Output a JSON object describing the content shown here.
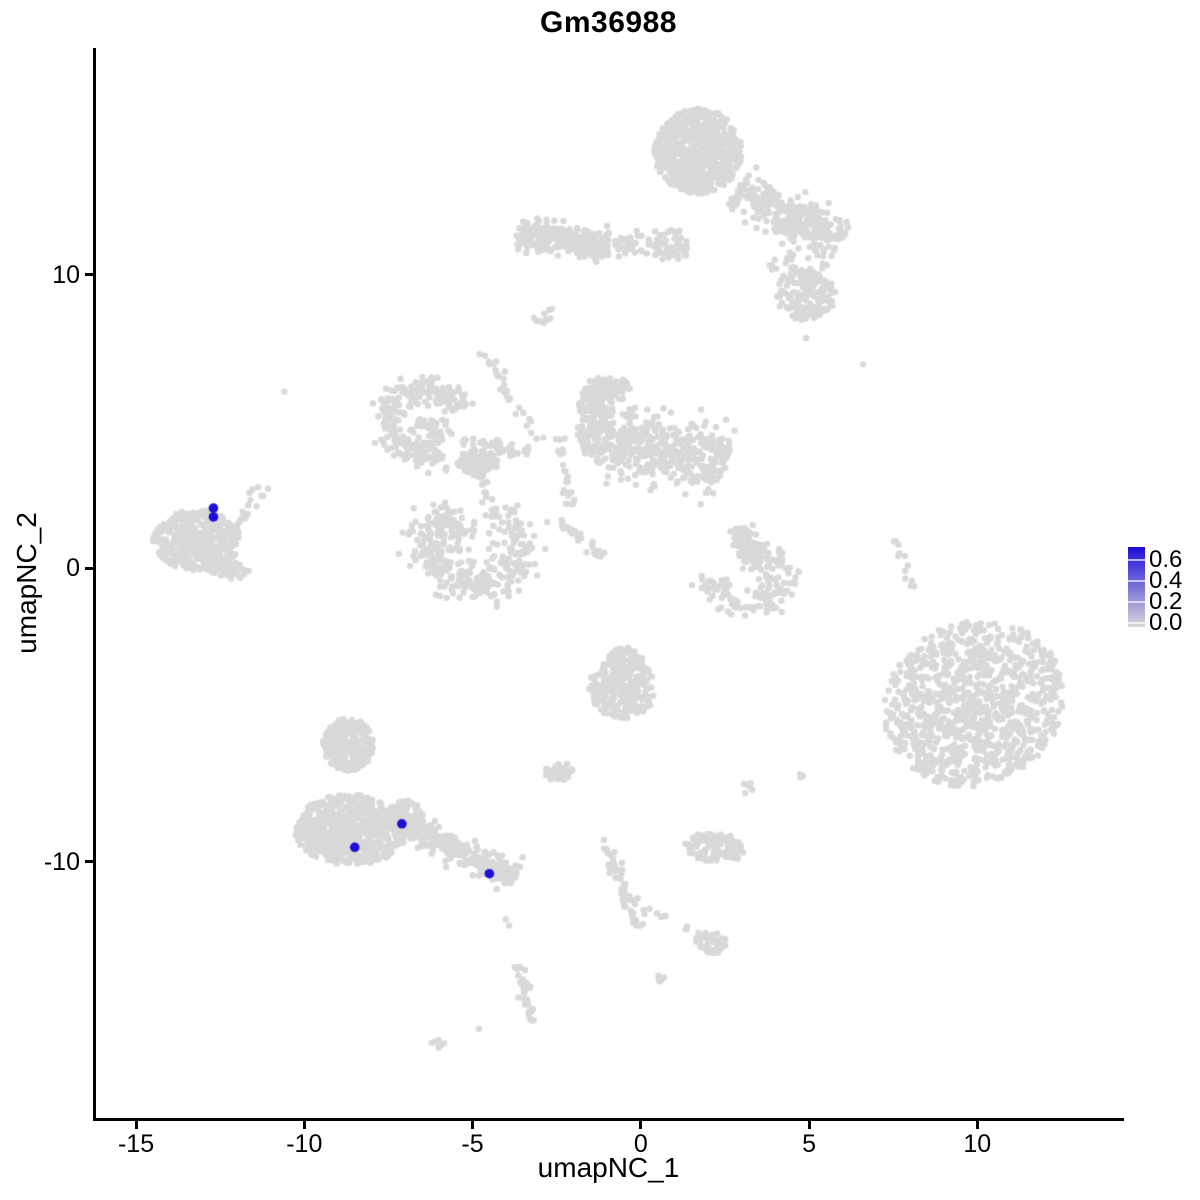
{
  "figure": {
    "title": "Gm36988",
    "background_color": "#FFFFFF"
  },
  "axes": {
    "x": {
      "title": "umapNC_1",
      "tick_labels": [
        "-15",
        "-10",
        "-5",
        "0",
        "5",
        "10"
      ]
    },
    "y": {
      "title": "umapNC_2",
      "tick_labels": [
        "10",
        "0",
        "-10"
      ]
    }
  },
  "legend": {
    "tick_labels": [
      "0.6",
      "0.4",
      "0.2",
      "0.0"
    ],
    "tick_values": [
      0.6,
      0.4,
      0.2,
      0.0
    ],
    "low_color": "#D9D9D9",
    "high_color": "#1E0DD8"
  },
  "chart_data": {
    "type": "scatter",
    "title": "Gm36988",
    "xlabel": "umapNC_1",
    "ylabel": "umapNC_2",
    "xlim": [
      -16.22,
      14.3
    ],
    "ylim": [
      -18.72,
      17.72
    ],
    "x_ticks": [
      -15,
      -10,
      -5,
      0,
      5,
      10
    ],
    "y_ticks": [
      10,
      0,
      -10
    ],
    "grid": false,
    "legend_position": "right",
    "color_scale": {
      "low": "#D9D9D9",
      "high": "#1E0DD8",
      "min": 0.0,
      "max": 0.6
    },
    "point_style": {
      "radius_px": 3.2,
      "highlight_radius_px": 4.8
    },
    "seed": 42,
    "highlighted_points": [
      {
        "x": -12.7,
        "y": 2.05,
        "value": 0.6
      },
      {
        "x": -12.7,
        "y": 1.75,
        "value": 0.6
      },
      {
        "x": -8.5,
        "y": -9.5,
        "value": 0.6
      },
      {
        "x": -7.1,
        "y": -8.7,
        "value": 0.6
      },
      {
        "x": -4.5,
        "y": -10.4,
        "value": 0.6
      }
    ],
    "background_clusters": [
      {
        "name": "top-main",
        "shape": "blob",
        "center": [
          1.7,
          14.2
        ],
        "spread": [
          1.3,
          1.45
        ],
        "angle": 0,
        "count": 700
      },
      {
        "name": "top-arm",
        "shape": "strip",
        "center": [
          4.4,
          12.0
        ],
        "length": 3.6,
        "width": 0.35,
        "angle": -28,
        "count": 230
      },
      {
        "name": "top-arm-knots",
        "shape": "blob",
        "center": [
          4.75,
          11.8
        ],
        "spread": [
          0.8,
          0.55
        ],
        "angle": -20,
        "count": 110
      },
      {
        "name": "top-right-scatter",
        "shape": "blob",
        "center": [
          4.6,
          10.4
        ],
        "spread": [
          1.1,
          0.85
        ],
        "angle": 0,
        "count": 40
      },
      {
        "name": "right-mid",
        "shape": "blob",
        "center": [
          4.9,
          9.3
        ],
        "spread": [
          0.9,
          0.85
        ],
        "angle": -15,
        "count": 150
      },
      {
        "name": "band-left",
        "shape": "strip",
        "center": [
          -2.3,
          11.2
        ],
        "length": 2.8,
        "width": 0.27,
        "angle": -8,
        "count": 260
      },
      {
        "name": "band-right",
        "shape": "strip",
        "center": [
          0.3,
          11.0
        ],
        "length": 2.2,
        "width": 0.22,
        "angle": -5,
        "count": 70
      },
      {
        "name": "band-below",
        "shape": "blob",
        "center": [
          0.9,
          11.05
        ],
        "spread": [
          0.55,
          0.55
        ],
        "angle": 0,
        "count": 22
      },
      {
        "name": "mini-diag",
        "shape": "strip",
        "center": [
          -2.8,
          8.6
        ],
        "length": 0.7,
        "width": 0.1,
        "angle": 45,
        "count": 12
      },
      {
        "name": "diag-streak",
        "shape": "strip",
        "center": [
          -3.8,
          5.8
        ],
        "length": 3.8,
        "width": 0.09,
        "angle": -62,
        "count": 28
      },
      {
        "name": "comma-arc",
        "shape": "arc",
        "center": [
          -6.45,
          5.0
        ],
        "radius": [
          1.05,
          1.15
        ],
        "thickness": 0.5,
        "arc_start": 20,
        "arc_end": 300,
        "count": 260
      },
      {
        "name": "comma-fill",
        "shape": "blob",
        "center": [
          -6.2,
          4.7
        ],
        "spread": [
          0.6,
          0.5
        ],
        "angle": 0,
        "count": 40
      },
      {
        "name": "comma-tail",
        "shape": "strip",
        "center": [
          -4.35,
          4.1
        ],
        "length": 2.0,
        "width": 0.16,
        "angle": -8,
        "count": 45
      },
      {
        "name": "knot",
        "shape": "blob",
        "center": [
          -4.85,
          3.6
        ],
        "spread": [
          0.6,
          0.45
        ],
        "angle": 0,
        "count": 90
      },
      {
        "name": "knot-chain",
        "shape": "strip",
        "center": [
          -4.55,
          2.4
        ],
        "length": 1.6,
        "width": 0.1,
        "angle": -78,
        "count": 22
      },
      {
        "name": "pre-crescent",
        "shape": "blob",
        "center": [
          -5.3,
          1.6
        ],
        "spread": [
          0.5,
          0.5
        ],
        "angle": 0,
        "count": 16
      },
      {
        "name": "crescent",
        "shape": "arc",
        "center": [
          -4.9,
          0.75
        ],
        "radius": [
          1.4,
          1.3
        ],
        "thickness": 0.7,
        "arc_start": 120,
        "arc_end": 420,
        "count": 330
      },
      {
        "name": "crescent-top",
        "shape": "blob",
        "center": [
          -5.5,
          1.0
        ],
        "spread": [
          0.55,
          0.6
        ],
        "angle": 0,
        "count": 22
      },
      {
        "name": "center-left-lobe",
        "shape": "blob",
        "center": [
          -1.35,
          5.0
        ],
        "spread": [
          0.55,
          1.5
        ],
        "angle": 0,
        "count": 220
      },
      {
        "name": "center-top-knob",
        "shape": "blob",
        "center": [
          -0.8,
          6.1
        ],
        "spread": [
          0.5,
          0.4
        ],
        "angle": 0,
        "count": 60
      },
      {
        "name": "center-right-arm",
        "shape": "strip",
        "center": [
          0.9,
          4.0
        ],
        "length": 3.4,
        "width": 0.55,
        "angle": -12,
        "count": 400
      },
      {
        "name": "center-chain",
        "shape": "strip",
        "center": [
          -2.25,
          3.3
        ],
        "length": 2.3,
        "width": 0.1,
        "angle": -82,
        "count": 24
      },
      {
        "name": "center-dash",
        "shape": "strip",
        "center": [
          -1.8,
          1.0
        ],
        "length": 1.7,
        "width": 0.09,
        "angle": -43,
        "count": 32
      },
      {
        "name": "right-crescent-top",
        "shape": "strip",
        "center": [
          3.2,
          0.7
        ],
        "length": 1.5,
        "width": 0.22,
        "angle": -60,
        "count": 75
      },
      {
        "name": "right-crescent-bowl",
        "shape": "arc",
        "center": [
          3.1,
          -0.35
        ],
        "radius": [
          1.1,
          0.9
        ],
        "thickness": 0.5,
        "arc_start": 170,
        "arc_end": 460,
        "count": 150
      },
      {
        "name": "thin-streak",
        "shape": "strip",
        "center": [
          7.8,
          0.15
        ],
        "length": 1.7,
        "width": 0.07,
        "angle": -70,
        "count": 12
      },
      {
        "name": "right-big",
        "shape": "blob",
        "center": [
          9.9,
          -4.6
        ],
        "spread": [
          2.6,
          2.9
        ],
        "angle": -30,
        "count": 1000
      },
      {
        "name": "center-bottom",
        "shape": "blob",
        "center": [
          -0.55,
          -4.1
        ],
        "spread": [
          1.0,
          1.0
        ],
        "angle": 0,
        "count": 240
      },
      {
        "name": "center-bottom-top",
        "shape": "blob",
        "center": [
          -0.45,
          -3.1
        ],
        "spread": [
          0.5,
          0.4
        ],
        "angle": 0,
        "count": 50
      },
      {
        "name": "small-left",
        "shape": "blob",
        "center": [
          -2.45,
          -6.9
        ],
        "spread": [
          0.42,
          0.35
        ],
        "angle": 0,
        "count": 45
      },
      {
        "name": "dot-pair",
        "shape": "blob",
        "center": [
          3.2,
          -7.5
        ],
        "spread": [
          0.22,
          0.2
        ],
        "angle": 0,
        "count": 6
      },
      {
        "name": "stray-a",
        "shape": "blob",
        "center": [
          4.7,
          -7.1
        ],
        "spread": [
          0.15,
          0.12
        ],
        "angle": 0,
        "count": 3
      },
      {
        "name": "left-main",
        "shape": "blob",
        "center": [
          -13.2,
          0.95
        ],
        "spread": [
          1.3,
          1.05
        ],
        "angle": 0,
        "count": 430
      },
      {
        "name": "left-bottom",
        "shape": "blob",
        "center": [
          -12.2,
          -0.1
        ],
        "spread": [
          0.55,
          0.3
        ],
        "angle": 0,
        "count": 45
      },
      {
        "name": "left-arm",
        "shape": "strip",
        "center": [
          -11.7,
          2.0
        ],
        "length": 1.9,
        "width": 0.12,
        "angle": 58,
        "count": 22
      },
      {
        "name": "bottomleft-top",
        "shape": "blob",
        "center": [
          -8.7,
          -6.0
        ],
        "spread": [
          0.75,
          0.9
        ],
        "angle": 0,
        "count": 250
      },
      {
        "name": "bottomleft-main",
        "shape": "blob",
        "center": [
          -8.6,
          -8.9
        ],
        "spread": [
          1.7,
          1.2
        ],
        "angle": 0,
        "count": 650
      },
      {
        "name": "bottomleft-right",
        "shape": "blob",
        "center": [
          -7.0,
          -8.6
        ],
        "spread": [
          0.55,
          0.7
        ],
        "angle": 0,
        "count": 150
      },
      {
        "name": "bottomleft-arm",
        "shape": "strip",
        "center": [
          -5.1,
          -9.8
        ],
        "length": 3.1,
        "width": 0.22,
        "angle": -30,
        "count": 210
      },
      {
        "name": "bottom-horiz",
        "shape": "blob",
        "center": [
          2.2,
          -9.5
        ],
        "spread": [
          0.9,
          0.5
        ],
        "angle": -8,
        "count": 110
      },
      {
        "name": "bottom-diag",
        "shape": "strip",
        "center": [
          -0.55,
          -10.75
        ],
        "length": 3.2,
        "width": 0.12,
        "angle": -70,
        "count": 55
      },
      {
        "name": "bottom-chain",
        "shape": "strip",
        "center": [
          0.4,
          -11.8
        ],
        "length": 0.75,
        "width": 0.07,
        "angle": -15,
        "count": 6
      },
      {
        "name": "bottom-pair",
        "shape": "blob",
        "center": [
          1.35,
          -12.2
        ],
        "spread": [
          0.12,
          0.1
        ],
        "angle": 0,
        "count": 3
      },
      {
        "name": "bottom-blob",
        "shape": "blob",
        "center": [
          2.1,
          -12.7
        ],
        "spread": [
          0.5,
          0.38
        ],
        "angle": -30,
        "count": 50
      },
      {
        "name": "tiny-blob",
        "shape": "blob",
        "center": [
          0.5,
          -14.0
        ],
        "spread": [
          0.2,
          0.2
        ],
        "angle": 0,
        "count": 7
      },
      {
        "name": "s-streak",
        "shape": "strip",
        "center": [
          -3.45,
          -14.5
        ],
        "length": 2.0,
        "width": 0.11,
        "angle": -78,
        "count": 40
      },
      {
        "name": "s-dots",
        "shape": "blob",
        "center": [
          -3.95,
          -12.2
        ],
        "spread": [
          0.1,
          0.35
        ],
        "angle": 0,
        "count": 2
      },
      {
        "name": "stray-b",
        "shape": "blob",
        "center": [
          -4.85,
          -15.7
        ],
        "spread": [
          0.05,
          0.05
        ],
        "angle": 0,
        "count": 1
      },
      {
        "name": "bottom-dash",
        "shape": "strip",
        "center": [
          -5.95,
          -16.2
        ],
        "length": 0.55,
        "width": 0.07,
        "angle": -30,
        "count": 6
      },
      {
        "name": "stray-c",
        "shape": "blob",
        "center": [
          -10.6,
          6.05
        ],
        "spread": [
          0.05,
          0.05
        ],
        "angle": 0,
        "count": 1
      },
      {
        "name": "stray-d",
        "shape": "blob",
        "center": [
          6.6,
          6.95
        ],
        "spread": [
          0.05,
          0.05
        ],
        "angle": 0,
        "count": 1
      },
      {
        "name": "stray-e",
        "shape": "blob",
        "center": [
          4.95,
          7.85
        ],
        "spread": [
          0.05,
          0.05
        ],
        "angle": 0,
        "count": 1
      }
    ]
  }
}
